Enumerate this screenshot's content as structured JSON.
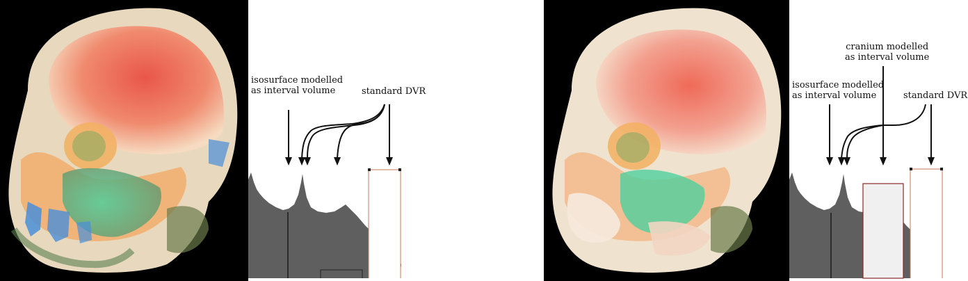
{
  "left_panel": {
    "labels": {
      "isosurface": [
        "isosurface modelled",
        "as interval volume"
      ],
      "standard_dvr": "standard DVR"
    }
  },
  "right_panel": {
    "labels": {
      "cranium": [
        "cranium modelled",
        "as interval volume"
      ],
      "isosurface": [
        "isosurface modelled",
        "as interval volume"
      ],
      "standard_dvr": "standard DVR"
    }
  },
  "colors": {
    "histogram_fill": "#5f5f5f",
    "render_background": "#000000",
    "tf_outline": "#c87a5a",
    "interval_box": "#8a2a2a",
    "skull_ivory": "#f2e2c8",
    "brain_red": "#e86a52",
    "teal": "#3fbf95",
    "orange": "#f2a65a",
    "blue": "#4a8fd8"
  }
}
